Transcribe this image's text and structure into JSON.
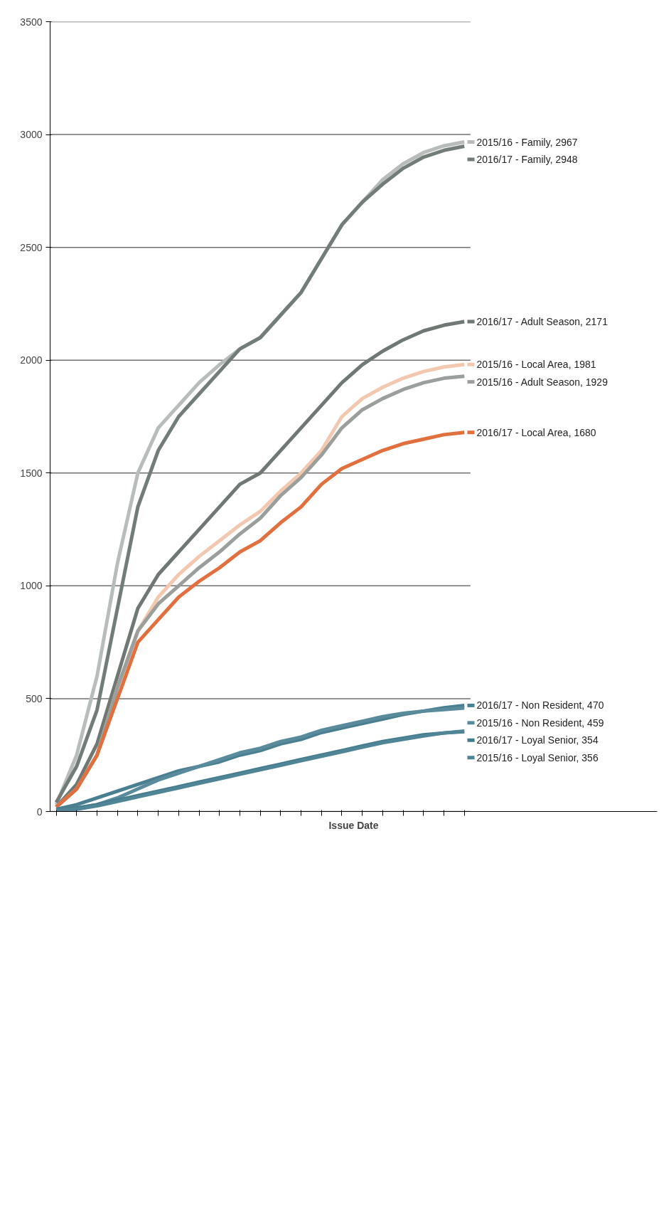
{
  "chart_data": {
    "type": "line",
    "xlabel": "Issue Date",
    "categories": [
      null,
      null,
      null,
      null,
      null,
      null,
      null,
      null,
      null,
      null,
      null,
      null,
      null,
      null,
      null,
      null,
      null,
      null,
      null,
      null,
      null
    ],
    "ylim": [
      0,
      3500
    ],
    "yticks": [
      0,
      500,
      1000,
      1500,
      2000,
      2500,
      3000,
      3500
    ],
    "grid": "y",
    "tick_labels": "y",
    "legend": "right",
    "series": [
      {
        "name": "2015/16 - Family, 2967",
        "color": "#b8bcbb",
        "values": [
          30,
          250,
          600,
          1100,
          1500,
          1700,
          1800,
          1900,
          1980,
          2050,
          2100,
          2200,
          2300,
          2450,
          2600,
          2700,
          2800,
          2870,
          2920,
          2950,
          2967
        ]
      },
      {
        "name": "2016/17 - Family, 2948",
        "color": "#737d78",
        "values": [
          40,
          200,
          450,
          900,
          1350,
          1600,
          1750,
          1850,
          1950,
          2050,
          2100,
          2200,
          2300,
          2450,
          2600,
          2700,
          2780,
          2850,
          2900,
          2930,
          2948
        ]
      },
      {
        "name": "2016/17 - Adult Season, 2171",
        "color": "#6f7873",
        "values": [
          20,
          120,
          300,
          600,
          900,
          1050,
          1150,
          1250,
          1350,
          1450,
          1500,
          1600,
          1700,
          1800,
          1900,
          1980,
          2040,
          2090,
          2130,
          2155,
          2171
        ]
      },
      {
        "name": "2015/16 - Local Area, 1981",
        "color": "#f2c9b0",
        "values": [
          20,
          100,
          250,
          550,
          800,
          950,
          1050,
          1130,
          1200,
          1270,
          1330,
          1420,
          1500,
          1600,
          1750,
          1830,
          1880,
          1920,
          1950,
          1970,
          1981
        ]
      },
      {
        "name": "2015/16 - Adult Season, 1929",
        "color": "#9a9f9c",
        "values": [
          20,
          100,
          250,
          550,
          800,
          920,
          1000,
          1080,
          1150,
          1230,
          1300,
          1400,
          1480,
          1580,
          1700,
          1780,
          1830,
          1870,
          1900,
          1920,
          1929
        ]
      },
      {
        "name": "2016/17 - Local Area, 1680",
        "color": "#e2703f",
        "values": [
          20,
          100,
          250,
          500,
          750,
          850,
          950,
          1020,
          1080,
          1150,
          1200,
          1280,
          1350,
          1450,
          1520,
          1560,
          1600,
          1630,
          1650,
          1670,
          1680
        ]
      },
      {
        "name": "2016/17 - Non Resident, 470",
        "color": "#4a7f91",
        "values": [
          10,
          30,
          60,
          90,
          120,
          150,
          180,
          200,
          220,
          250,
          270,
          300,
          320,
          350,
          370,
          390,
          410,
          430,
          445,
          460,
          470
        ]
      },
      {
        "name": "2015/16 - Non Resident, 459",
        "color": "#5a8b9c",
        "values": [
          5,
          15,
          30,
          60,
          100,
          140,
          170,
          200,
          230,
          260,
          280,
          310,
          330,
          360,
          380,
          400,
          420,
          435,
          445,
          452,
          459
        ]
      },
      {
        "name": "2016/17 - Loyal Senior, 354",
        "color": "#437a8c",
        "values": [
          5,
          15,
          30,
          50,
          70,
          90,
          110,
          130,
          150,
          170,
          190,
          210,
          230,
          250,
          270,
          290,
          310,
          325,
          340,
          348,
          354
        ]
      },
      {
        "name": "2015/16 - Loyal Senior, 356",
        "color": "#508597",
        "values": [
          5,
          10,
          25,
          45,
          65,
          85,
          105,
          125,
          145,
          165,
          185,
          205,
          225,
          245,
          265,
          285,
          305,
          320,
          335,
          348,
          356
        ]
      }
    ]
  }
}
